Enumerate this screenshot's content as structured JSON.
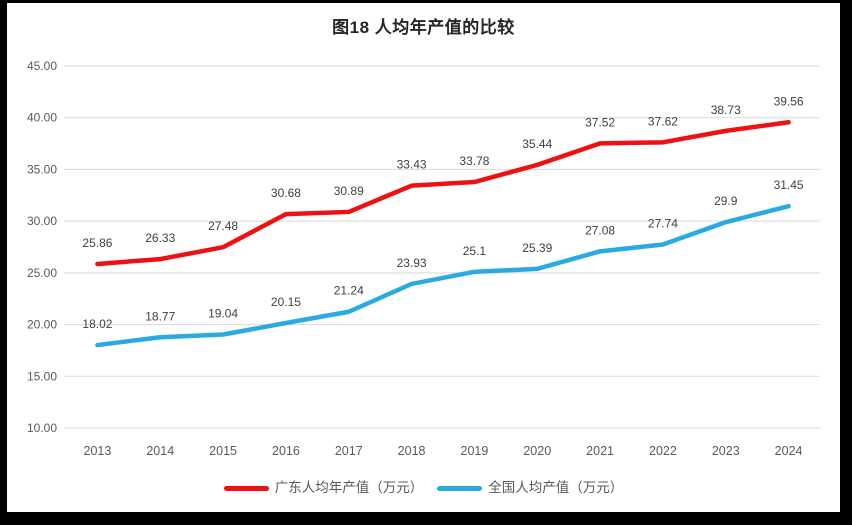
{
  "chart_data": {
    "type": "line",
    "title": "图18 人均年产值的比较",
    "categories": [
      "2013",
      "2014",
      "2015",
      "2016",
      "2017",
      "2018",
      "2019",
      "2020",
      "2021",
      "2022",
      "2023",
      "2024"
    ],
    "series": [
      {
        "name": "广东人均年产值（万元）",
        "color": "#ee1111",
        "values": [
          25.86,
          26.33,
          27.48,
          30.68,
          30.89,
          33.43,
          33.78,
          35.44,
          37.52,
          37.62,
          38.73,
          39.56
        ]
      },
      {
        "name": "全国人均产值（万元）",
        "color": "#29abe2",
        "values": [
          18.02,
          18.77,
          19.04,
          20.15,
          21.24,
          23.93,
          25.1,
          25.39,
          27.08,
          27.74,
          29.9,
          31.45
        ]
      }
    ],
    "y_axis": {
      "min": 10,
      "max": 45,
      "step": 5,
      "ticks": [
        "45.00",
        "40.00",
        "35.00",
        "30.00",
        "25.00",
        "20.00",
        "15.00",
        "10.00"
      ]
    },
    "x_axis": {
      "label": ""
    },
    "grid": true,
    "data_labels": true,
    "legend_position": "bottom",
    "colors": {
      "grid": "#d9d9d9",
      "axis_text": "#595959",
      "label_text": "#404040",
      "title_text": "#262626",
      "frame": "#000000",
      "background": "#ffffff"
    }
  }
}
